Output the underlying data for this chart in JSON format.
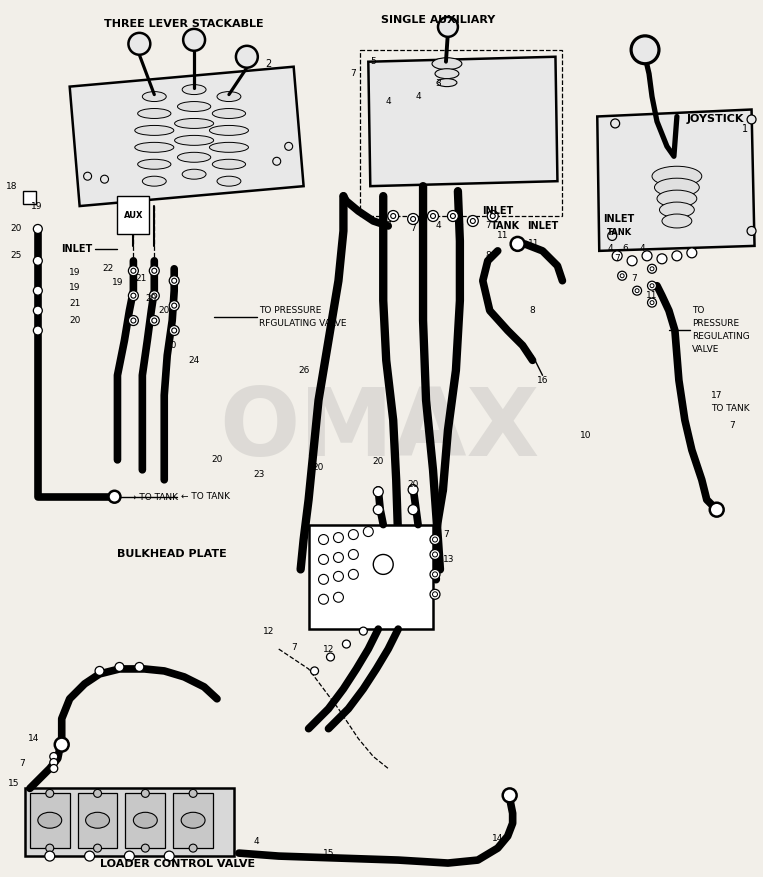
{
  "bg_color": "#f2efe9",
  "lw_thick": 5.5,
  "lw_med": 1.8,
  "lw_thin": 1.0,
  "lw_dash": 0.9,
  "watermark": "OMAX",
  "labels": {
    "three_lever": "THREE LEVER STACKABLE",
    "single_aux": "SINGLE AUXILIARY",
    "joystick": "JOYSTICK",
    "inlet": "INLET",
    "tank": "TANK",
    "to_pressure_left": [
      "TO PRESSURE",
      "RFGULATING VALVE"
    ],
    "to_pressure_right": [
      "TO",
      "PRESSURE",
      "REGULATING",
      "VALVE"
    ],
    "to_tank": "TO TANK",
    "bulkhead": "BULKHEAD PLATE",
    "loader": "LOADER CONTROL VALVE",
    "aux": "AUX"
  }
}
